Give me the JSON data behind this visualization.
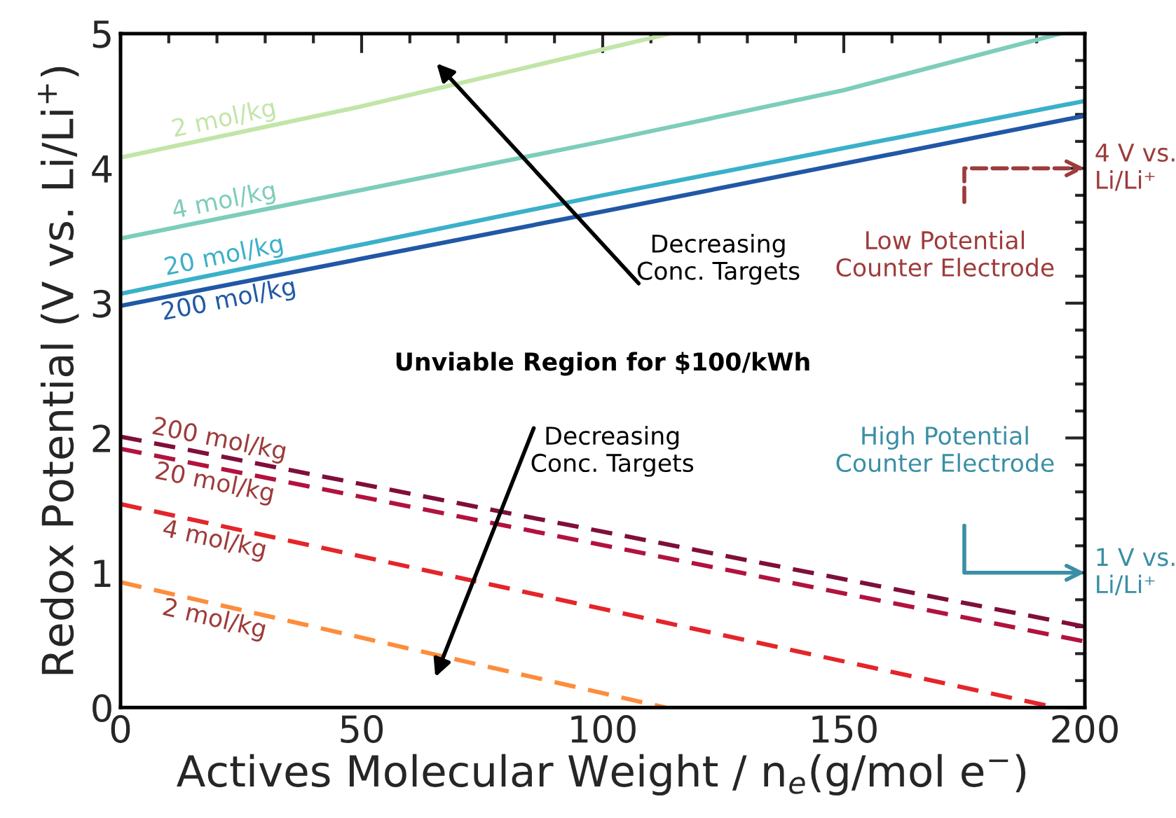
{
  "chart_data": {
    "type": "line",
    "xlabel": "Actives Molecular Weight / n$_{e}$(g/mol e$^{−}$)",
    "ylabel": "Redox Potential (V vs. Li/Li$^{+}$)",
    "xlim": [
      0,
      200
    ],
    "ylim": [
      0,
      5
    ],
    "xticks": [
      0,
      50,
      100,
      150,
      200
    ],
    "yticks": [
      0,
      1,
      2,
      3,
      4,
      5
    ],
    "grid": false,
    "legend": false,
    "marker": "none",
    "series": [
      {
        "name": "2 mol/kg",
        "color": "#c2e5a8",
        "line_style": "solid",
        "x": [
          0,
          50,
          114
        ],
        "values": [
          4.08,
          4.46,
          5.0
        ]
      },
      {
        "name": "4 mol/kg",
        "color": "#7ecdbb",
        "line_style": "solid",
        "x": [
          0,
          50,
          100,
          150,
          195
        ],
        "values": [
          3.48,
          3.84,
          4.2,
          4.58,
          5.0
        ]
      },
      {
        "name": "20 mol/kg",
        "color": "#3bb0c9",
        "line_style": "solid",
        "x": [
          0,
          100,
          200
        ],
        "values": [
          3.07,
          3.8,
          4.5
        ]
      },
      {
        "name": "200 mol/kg",
        "color": "#2158a6",
        "line_style": "solid",
        "x": [
          0,
          100,
          200
        ],
        "values": [
          2.98,
          3.68,
          4.39
        ]
      },
      {
        "name": "200 mol/kg",
        "color": "#7f0f3a",
        "line_style": "dashed",
        "x": [
          0,
          200
        ],
        "values": [
          2.01,
          0.6
        ]
      },
      {
        "name": "20 mol/kg",
        "color": "#b3123e",
        "line_style": "dashed",
        "x": [
          0,
          200
        ],
        "values": [
          1.92,
          0.49
        ]
      },
      {
        "name": "4 mol/kg",
        "color": "#e4252a",
        "line_style": "dashed",
        "x": [
          0,
          194
        ],
        "values": [
          1.51,
          0.0
        ]
      },
      {
        "name": "2 mol/kg",
        "color": "#fd8d3c",
        "line_style": "dashed",
        "x": [
          0,
          113
        ],
        "values": [
          0.93,
          0.0
        ]
      }
    ],
    "annotations": [
      "Unviable Region for $100/kWh",
      "Decreasing\nConc. Targets",
      "Decreasing\nConc. Targets",
      "Low Potential\nCounter Electrode",
      "4 V vs.\nLi/Li⁺",
      "High Potential\nCounter Electrode",
      "1 V vs.\nLi/Li⁺"
    ]
  }
}
